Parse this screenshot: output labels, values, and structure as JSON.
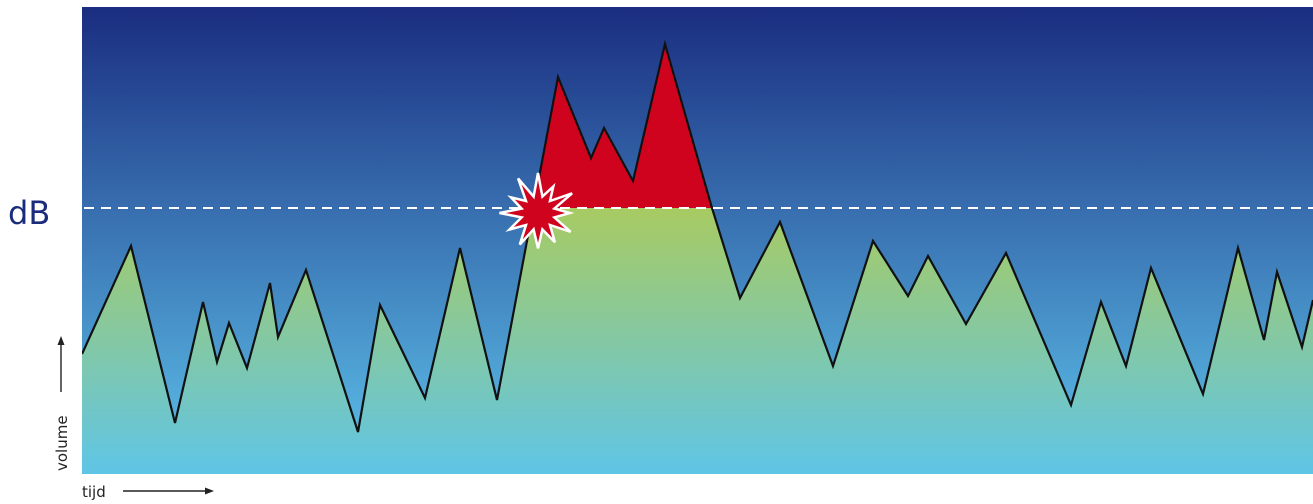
{
  "threshold_label": "dB",
  "y_axis_label": "volume",
  "x_axis_label": "tijd",
  "colors": {
    "sky_top": "#1a2d80",
    "sky_bottom": "#5ec3ec",
    "fill_top": "#a8cb62",
    "fill_bottom": "#5fc5e6",
    "excess": "#d0031f",
    "outline": "#111111",
    "threshold_line": "#ffffff",
    "label_text": "#1b2c7c",
    "axis_text": "#222222"
  }
}
